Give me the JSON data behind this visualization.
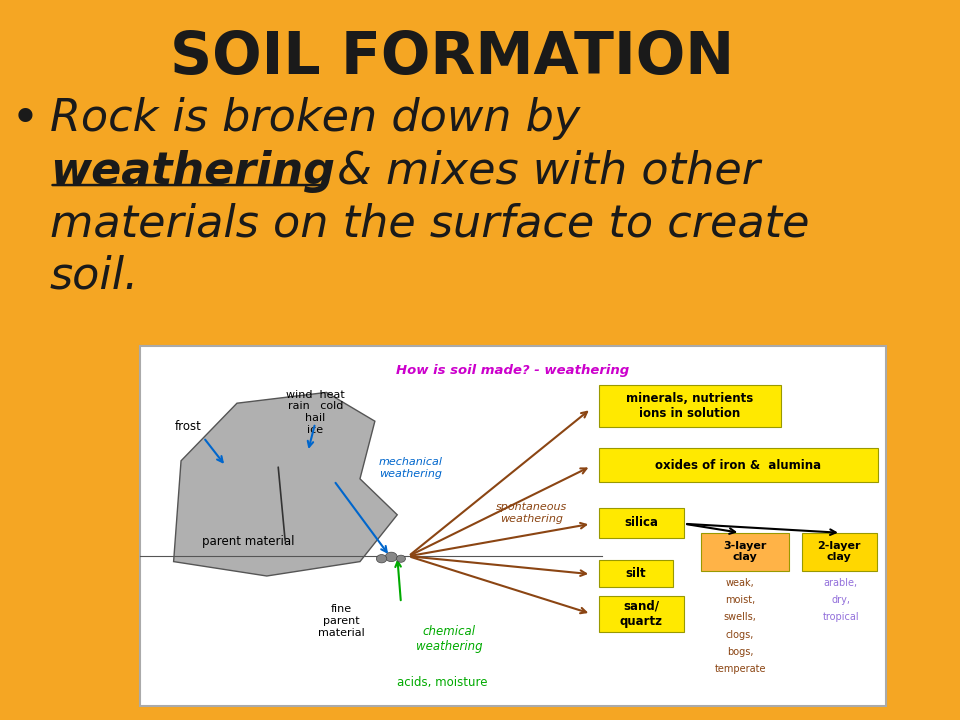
{
  "background_color": "#F5A623",
  "title": "SOIL FORMATION",
  "title_fontsize": 42,
  "title_color": "#1a1a1a",
  "title_fontweight": "bold",
  "bullet_text_line1": "Rock is broken down by",
  "bullet_text_line2_underline": "weathering",
  "bullet_text_line2_normal": " & mixes with other",
  "bullet_text_line3": "materials on the surface to create",
  "bullet_text_line4": "soil.",
  "body_fontsize": 32,
  "body_color": "#1a1a1a",
  "bx0": 0.155,
  "by0": 0.02,
  "bw": 0.825,
  "bh": 0.5
}
